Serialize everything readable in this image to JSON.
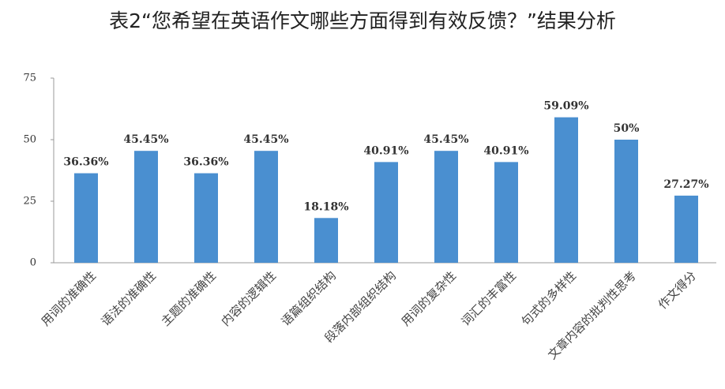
{
  "chart_data": {
    "type": "bar",
    "title": "表2“您希望在英语作文哪些方面得到有效反馈？”结果分析",
    "categories": [
      "用词的准确性",
      "语法的准确性",
      "主题的准确性",
      "内容的逻辑性",
      "语篇组织结构",
      "段落内部组织结构",
      "用词的复杂性",
      "词汇的丰富性",
      "句式的多样性",
      "文章内容的批判性思考",
      "作文得分"
    ],
    "values": [
      36.36,
      45.45,
      36.36,
      45.45,
      18.18,
      40.91,
      45.45,
      40.91,
      59.09,
      50,
      27.27
    ],
    "value_labels": [
      "36.36%",
      "45.45%",
      "36.36%",
      "45.45%",
      "18.18%",
      "40.91%",
      "45.45%",
      "40.91%",
      "59.09%",
      "50%",
      "27.27%"
    ],
    "color": "#4a8fd0",
    "ylim": [
      0,
      75
    ],
    "yticks": [
      0,
      25,
      50,
      75
    ],
    "grid": false
  }
}
